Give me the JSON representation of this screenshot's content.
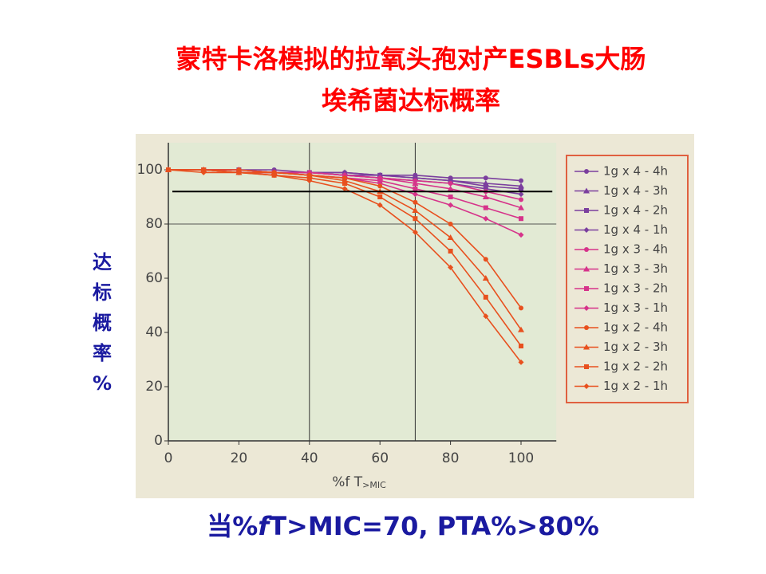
{
  "title_lines": [
    "蒙特卡洛模拟的拉氧头孢对产ESBLs大肠",
    "埃希菌达标概率"
  ],
  "y_label_chars": [
    "达",
    "标",
    "概",
    "率",
    "%"
  ],
  "footer": {
    "prefix": "当%",
    "italic": "f",
    "rest": "T>MIC=70, PTA%>80%"
  },
  "chart_data": {
    "type": "line",
    "x_label": {
      "main": "%f T",
      "sub": ">MIC"
    },
    "x": [
      0,
      10,
      20,
      30,
      40,
      50,
      60,
      70,
      80,
      90,
      100
    ],
    "xlim": [
      0,
      110
    ],
    "xticks": [
      0,
      20,
      40,
      60,
      80,
      100
    ],
    "ylim": [
      0,
      110
    ],
    "yticks": [
      0,
      20,
      40,
      60,
      80,
      100
    ],
    "grid_x": [
      40,
      70
    ],
    "grid_y": [
      80
    ],
    "target_line": 92,
    "series": [
      {
        "name": "1g x 4 - 4h",
        "color": "#7b3f9e",
        "marker": "circle",
        "values": [
          100,
          100,
          100,
          100,
          99,
          99,
          98,
          98,
          97,
          97,
          96
        ]
      },
      {
        "name": "1g x 4 - 3h",
        "color": "#7b3f9e",
        "marker": "triangle",
        "values": [
          100,
          100,
          100,
          99,
          99,
          99,
          98,
          97,
          96,
          95,
          94
        ]
      },
      {
        "name": "1g x 4 - 2h",
        "color": "#7b3f9e",
        "marker": "square",
        "values": [
          100,
          100,
          100,
          99,
          99,
          98,
          98,
          97,
          96,
          94,
          93
        ]
      },
      {
        "name": "1g x 4 - 1h",
        "color": "#7b3f9e",
        "marker": "diamond",
        "values": [
          100,
          100,
          99,
          99,
          99,
          98,
          97,
          96,
          95,
          93,
          91
        ]
      },
      {
        "name": "1g x 3 - 4h",
        "color": "#d6338a",
        "marker": "circle",
        "values": [
          100,
          100,
          100,
          99,
          99,
          98,
          97,
          96,
          95,
          92,
          89
        ]
      },
      {
        "name": "1g x 3 - 3h",
        "color": "#d6338a",
        "marker": "triangle",
        "values": [
          100,
          100,
          100,
          99,
          99,
          98,
          97,
          95,
          93,
          90,
          86
        ]
      },
      {
        "name": "1g x 3 - 2h",
        "color": "#d6338a",
        "marker": "square",
        "values": [
          100,
          100,
          99,
          99,
          98,
          97,
          96,
          93,
          90,
          86,
          82
        ]
      },
      {
        "name": "1g x 3 - 1h",
        "color": "#d6338a",
        "marker": "diamond",
        "values": [
          100,
          100,
          99,
          99,
          98,
          97,
          95,
          91,
          87,
          82,
          76
        ]
      },
      {
        "name": "1g x 2 - 4h",
        "color": "#e8501e",
        "marker": "circle",
        "values": [
          100,
          100,
          100,
          99,
          98,
          97,
          94,
          88,
          80,
          67,
          49
        ]
      },
      {
        "name": "1g x 2 - 3h",
        "color": "#e8501e",
        "marker": "triangle",
        "values": [
          100,
          100,
          99,
          99,
          98,
          96,
          92,
          85,
          75,
          60,
          41
        ]
      },
      {
        "name": "1g x 2 - 2h",
        "color": "#e8501e",
        "marker": "square",
        "values": [
          100,
          100,
          99,
          98,
          97,
          95,
          90,
          82,
          70,
          53,
          35
        ]
      },
      {
        "name": "1g x 2 - 1h",
        "color": "#e8501e",
        "marker": "diamond",
        "values": [
          100,
          99,
          99,
          98,
          96,
          93,
          87,
          77,
          64,
          46,
          29
        ]
      }
    ]
  }
}
